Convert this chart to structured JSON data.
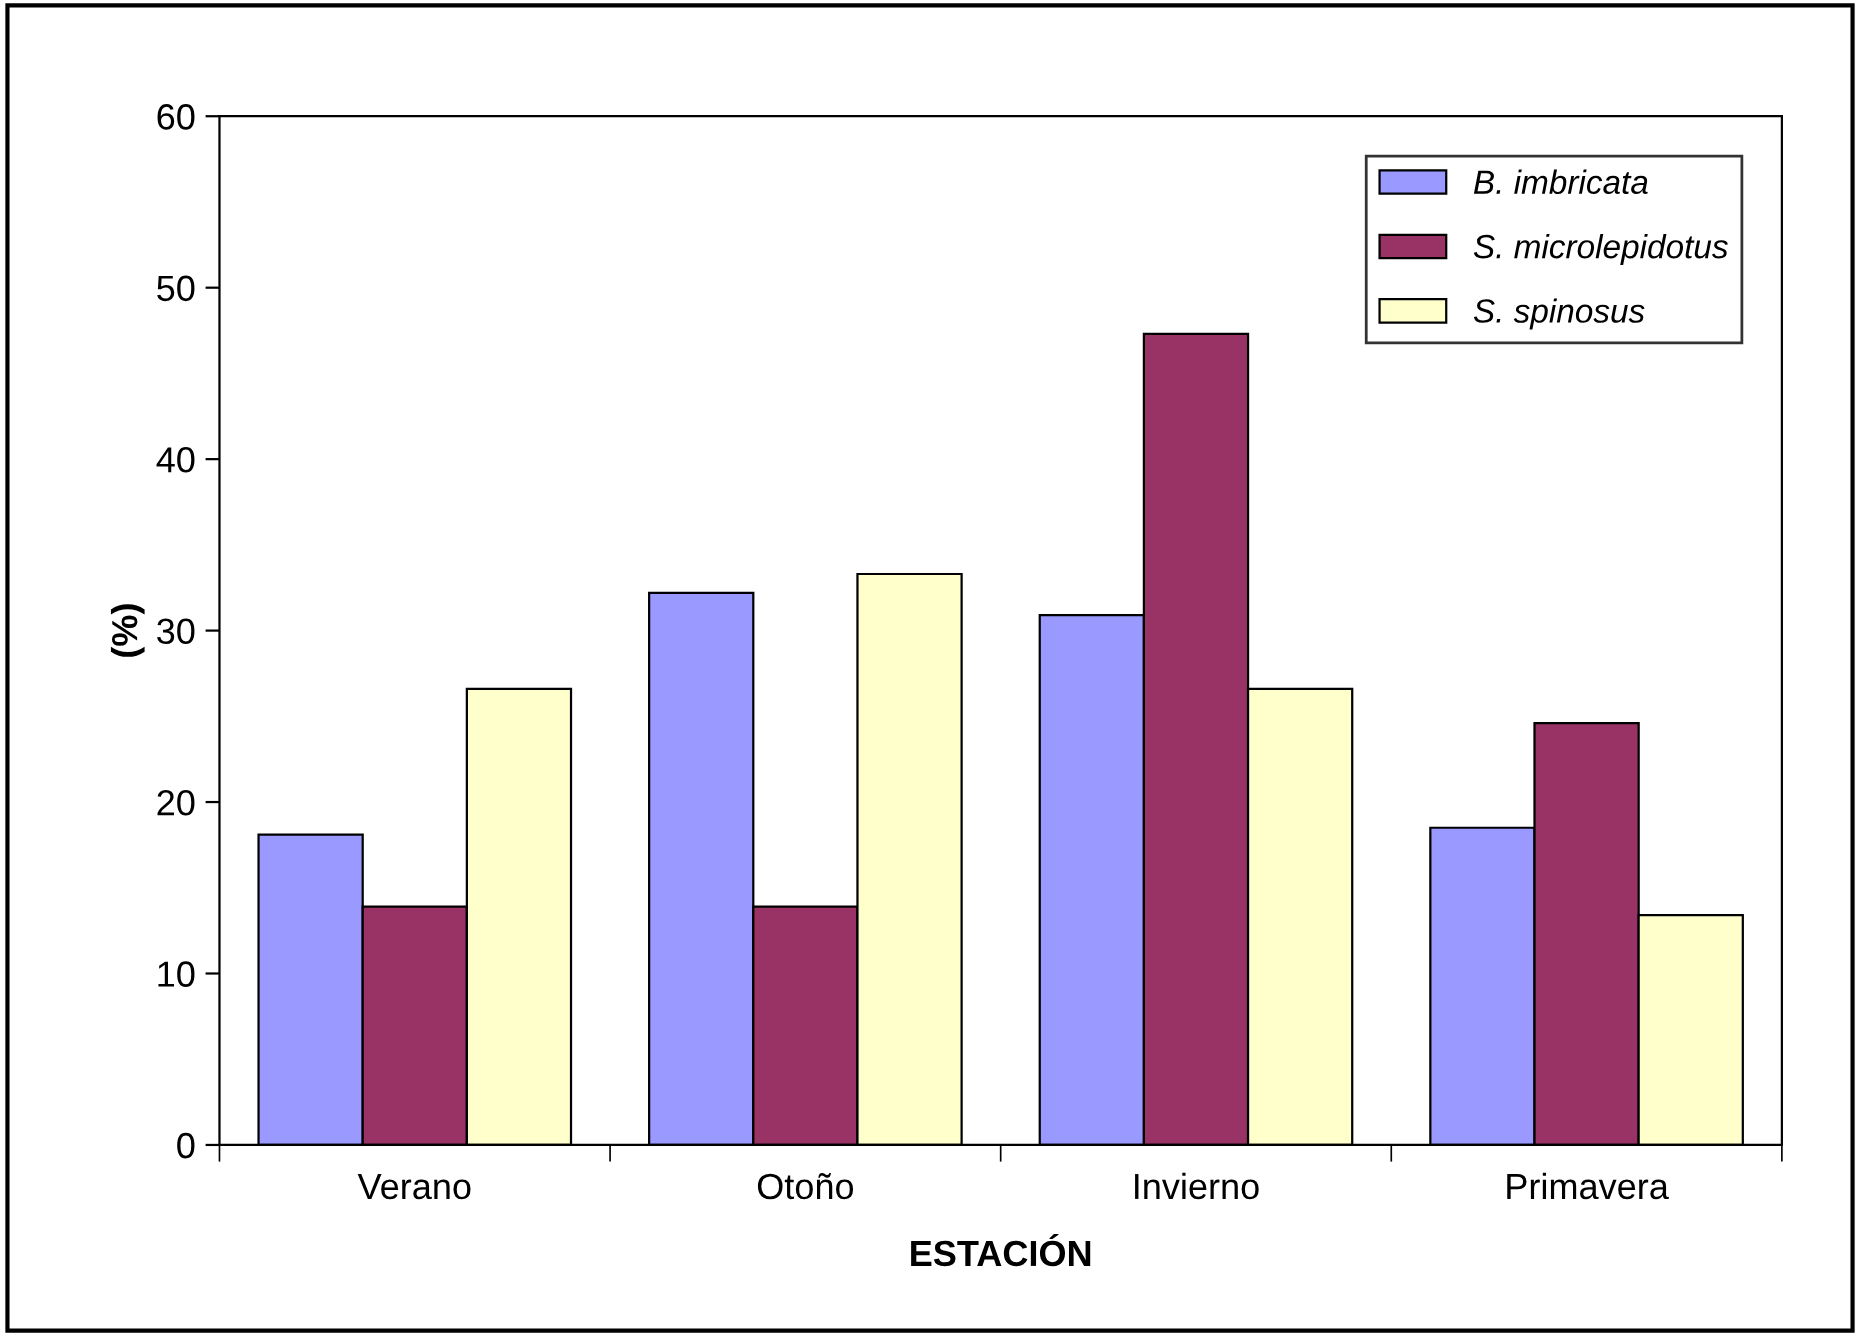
{
  "chart_data": {
    "type": "bar",
    "xlabel": "ESTACIÓN",
    "ylabel": "(%)",
    "categories": [
      "Verano",
      "Otoño",
      "Invierno",
      "Primavera"
    ],
    "series": [
      {
        "name": "B. imbricata",
        "color": "#9999ff",
        "values": [
          18.1,
          32.2,
          30.9,
          18.5
        ]
      },
      {
        "name": "S. microlepidotus",
        "color": "#993366",
        "values": [
          13.9,
          13.9,
          47.3,
          24.6
        ]
      },
      {
        "name": "S. spinosus",
        "color": "#ffffcc",
        "values": [
          26.6,
          33.3,
          26.6,
          13.4
        ]
      }
    ],
    "ylim": [
      0,
      60
    ],
    "yticks": [
      0,
      10,
      20,
      30,
      40,
      50,
      60
    ],
    "grid": false,
    "legend": "top right"
  }
}
